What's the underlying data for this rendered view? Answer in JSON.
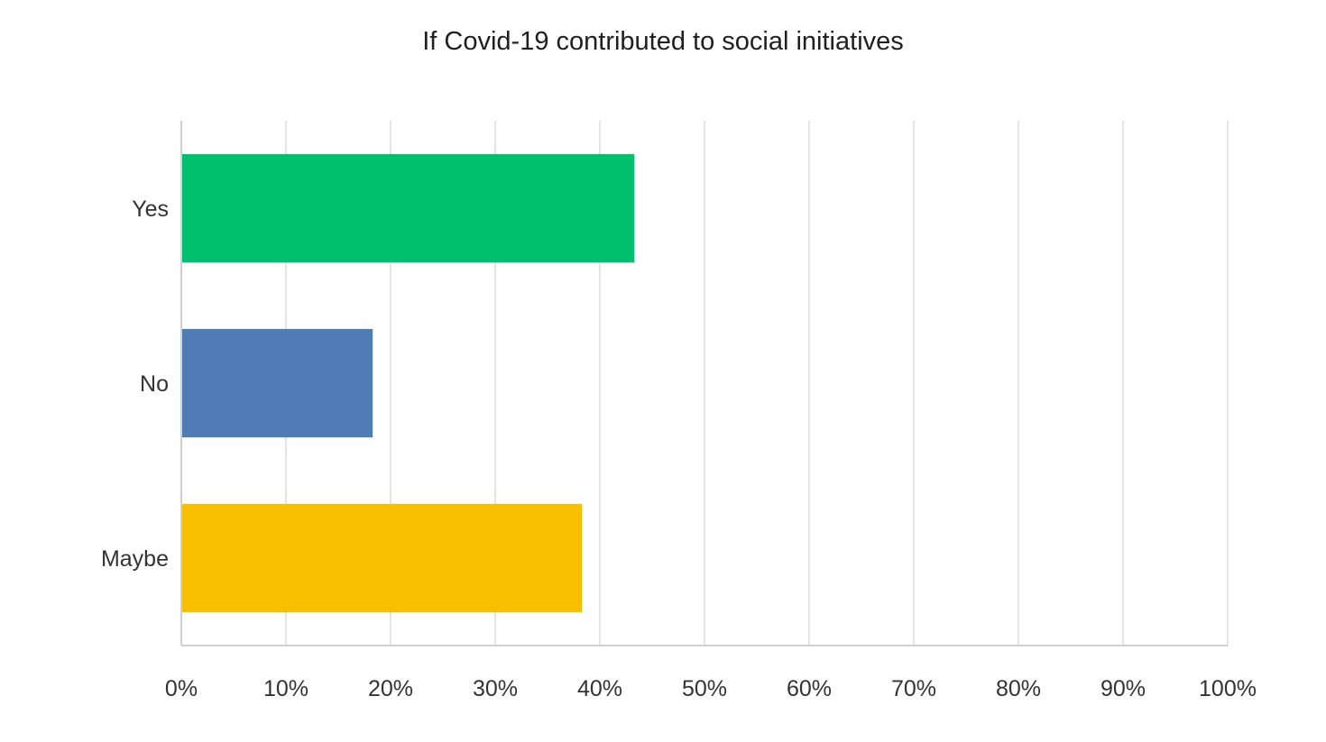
{
  "chart_data": {
    "type": "bar",
    "orientation": "horizontal",
    "title": "If Covid-19 contributed to social initiatives",
    "xlabel": "",
    "ylabel": "",
    "categories": [
      "Yes",
      "No",
      "Maybe"
    ],
    "values": [
      43.2,
      18.2,
      38.2
    ],
    "colors": [
      "#00BF6F",
      "#507CB6",
      "#F8BE00"
    ],
    "xlim": [
      0,
      100
    ],
    "x_ticks": [
      "0%",
      "10%",
      "20%",
      "30%",
      "40%",
      "50%",
      "60%",
      "70%",
      "80%",
      "90%",
      "100%"
    ],
    "grid": true,
    "legend": "none"
  }
}
